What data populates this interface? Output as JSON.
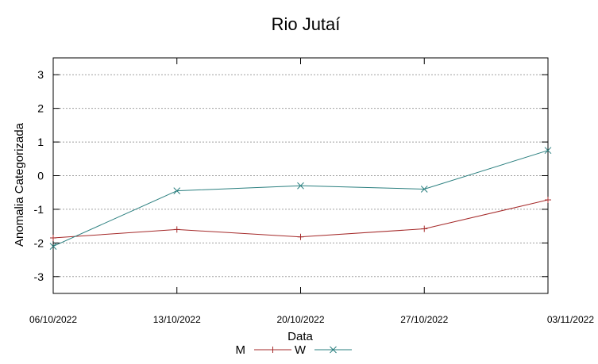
{
  "chart_data": {
    "type": "line",
    "title": "Rio Jutaí",
    "xlabel": "Data",
    "ylabel": "Anomalia Categorizada",
    "categories": [
      "06/10/2022",
      "13/10/2022",
      "20/10/2022",
      "27/10/2022",
      "03/11/2022"
    ],
    "yticks": [
      3,
      2,
      1,
      0,
      -1,
      -2,
      -3
    ],
    "ytick_labels": [
      "3",
      "2",
      "1",
      "0",
      "-1",
      "-2",
      "-3"
    ],
    "ylim": [
      -3.5,
      3.5
    ],
    "grid": true,
    "legend_position": "bottom",
    "series": [
      {
        "name": "M",
        "color": "#a52a2a",
        "marker": "plus",
        "values": [
          -1.85,
          -1.6,
          -1.82,
          -1.58,
          -0.72
        ]
      },
      {
        "name": "W",
        "color": "#2a7f7f",
        "marker": "cross",
        "values": [
          -2.1,
          -0.45,
          -0.3,
          -0.4,
          0.75
        ]
      }
    ]
  }
}
